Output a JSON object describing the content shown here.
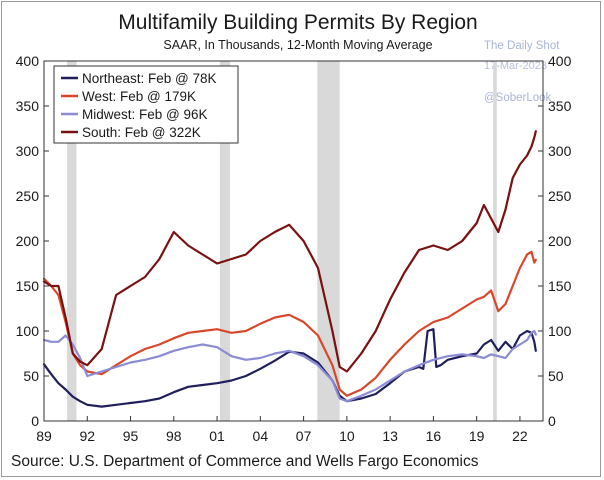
{
  "chart_data": {
    "type": "line",
    "title": "Multifamily Building Permits By Region",
    "subtitle": "SAAR, In Thousands, 12-Month Moving Average",
    "source": "Source: U.S. Department of Commerce and Wells Fargo Economics",
    "watermark": {
      "line1": "The Daily Shot",
      "line2": "17-Mar-2023",
      "line3": "@SoberLook"
    },
    "x_tick_labels": [
      "89",
      "92",
      "95",
      "98",
      "01",
      "04",
      "07",
      "10",
      "13",
      "16",
      "19",
      "22"
    ],
    "x_tick_years": [
      1989,
      1992,
      1995,
      1998,
      2001,
      2004,
      2007,
      2010,
      2013,
      2016,
      2019,
      2022
    ],
    "xlim": [
      1989,
      2023.6
    ],
    "ylim": [
      0,
      400
    ],
    "y_ticks": [
      0,
      50,
      100,
      150,
      200,
      250,
      300,
      350,
      400
    ],
    "y_tick_labels": [
      "0",
      "50",
      "100",
      "150",
      "200",
      "250",
      "300",
      "350",
      "400"
    ],
    "y_ticks_right": [
      0,
      50,
      100,
      150,
      200,
      250,
      300,
      350,
      400
    ],
    "y_tick_labels_right": [
      "0",
      "50",
      "100",
      "150",
      "200",
      "250",
      "300",
      "350",
      "400"
    ],
    "grid": false,
    "legend_position": "top-left",
    "recessions": [
      [
        1990.6,
        1991.25
      ],
      [
        2001.2,
        2001.9
      ],
      [
        2007.95,
        2009.5
      ],
      [
        2020.15,
        2020.4
      ]
    ],
    "recession_color": "#d9d9d9",
    "series": [
      {
        "name": "Northeast: Feb @ 78K",
        "color": "#1f1f5c",
        "x": [
          1989.0,
          1989.5,
          1990.0,
          1990.5,
          1991.0,
          1991.5,
          1992.0,
          1993.0,
          1994.0,
          1995.0,
          1996.0,
          1997.0,
          1998.0,
          1999.0,
          2000.0,
          2001.0,
          2002.0,
          2003.0,
          2004.0,
          2005.0,
          2006.0,
          2007.0,
          2008.0,
          2009.0,
          2009.5,
          2010.0,
          2011.0,
          2012.0,
          2013.0,
          2014.0,
          2015.0,
          2015.3,
          2015.6,
          2016.0,
          2016.2,
          2016.5,
          2017.0,
          2018.0,
          2019.0,
          2019.5,
          2020.0,
          2020.5,
          2021.0,
          2021.5,
          2022.0,
          2022.5,
          2022.8,
          2023.0,
          2023.1
        ],
        "y": [
          63,
          52,
          42,
          35,
          27,
          22,
          18,
          16,
          18,
          20,
          22,
          25,
          32,
          38,
          40,
          42,
          45,
          50,
          58,
          67,
          77,
          75,
          65,
          45,
          28,
          22,
          25,
          30,
          42,
          55,
          60,
          58,
          100,
          102,
          60,
          62,
          68,
          72,
          75,
          85,
          90,
          78,
          88,
          80,
          95,
          100,
          98,
          88,
          78
        ]
      },
      {
        "name": "West: Feb @ 179K",
        "color": "#d9472b",
        "x": [
          1989.0,
          1989.5,
          1990.0,
          1990.5,
          1991.0,
          1991.5,
          1992.0,
          1993.0,
          1994.0,
          1995.0,
          1996.0,
          1997.0,
          1998.0,
          1999.0,
          2000.0,
          2001.0,
          2002.0,
          2003.0,
          2004.0,
          2005.0,
          2006.0,
          2007.0,
          2008.0,
          2009.0,
          2009.5,
          2010.0,
          2011.0,
          2012.0,
          2013.0,
          2014.0,
          2015.0,
          2016.0,
          2017.0,
          2018.0,
          2019.0,
          2019.5,
          2020.0,
          2020.5,
          2021.0,
          2021.5,
          2022.0,
          2022.5,
          2022.8,
          2023.0,
          2023.1
        ],
        "y": [
          158,
          150,
          140,
          110,
          75,
          62,
          55,
          52,
          62,
          72,
          80,
          85,
          92,
          98,
          100,
          102,
          98,
          100,
          108,
          115,
          118,
          110,
          95,
          62,
          35,
          28,
          35,
          48,
          68,
          85,
          100,
          110,
          115,
          125,
          135,
          138,
          145,
          122,
          130,
          150,
          170,
          185,
          188,
          176,
          179
        ]
      },
      {
        "name": "Midwest: Feb @ 96K",
        "color": "#8b8bd6",
        "x": [
          1989.0,
          1989.5,
          1990.0,
          1990.5,
          1991.0,
          1991.5,
          1992.0,
          1993.0,
          1994.0,
          1995.0,
          1996.0,
          1997.0,
          1998.0,
          1999.0,
          2000.0,
          2001.0,
          2002.0,
          2003.0,
          2004.0,
          2005.0,
          2006.0,
          2007.0,
          2008.0,
          2009.0,
          2009.5,
          2010.0,
          2011.0,
          2012.0,
          2013.0,
          2014.0,
          2015.0,
          2016.0,
          2017.0,
          2018.0,
          2019.0,
          2019.5,
          2020.0,
          2020.5,
          2021.0,
          2021.5,
          2022.0,
          2022.5,
          2022.8,
          2023.0,
          2023.1
        ],
        "y": [
          90,
          88,
          88,
          95,
          85,
          70,
          50,
          55,
          60,
          65,
          68,
          72,
          78,
          82,
          85,
          82,
          72,
          68,
          70,
          75,
          78,
          72,
          62,
          45,
          25,
          22,
          28,
          35,
          45,
          55,
          62,
          68,
          72,
          74,
          72,
          70,
          74,
          72,
          70,
          80,
          85,
          90,
          98,
          100,
          96
        ]
      },
      {
        "name": "South: Feb @ 322K",
        "color": "#7a1010",
        "x": [
          1989.0,
          1989.5,
          1990.0,
          1990.5,
          1991.0,
          1991.5,
          1992.0,
          1993.0,
          1994.0,
          1995.0,
          1996.0,
          1997.0,
          1998.0,
          1999.0,
          2000.0,
          2001.0,
          2002.0,
          2003.0,
          2004.0,
          2005.0,
          2006.0,
          2007.0,
          2008.0,
          2009.0,
          2009.5,
          2010.0,
          2011.0,
          2012.0,
          2013.0,
          2014.0,
          2015.0,
          2016.0,
          2017.0,
          2018.0,
          2019.0,
          2019.5,
          2020.0,
          2020.5,
          2021.0,
          2021.5,
          2022.0,
          2022.5,
          2022.8,
          2023.0,
          2023.1
        ],
        "y": [
          155,
          150,
          150,
          115,
          75,
          66,
          62,
          80,
          140,
          150,
          160,
          180,
          210,
          195,
          185,
          175,
          180,
          185,
          200,
          210,
          218,
          200,
          170,
          100,
          60,
          55,
          75,
          100,
          135,
          165,
          190,
          195,
          190,
          200,
          220,
          240,
          225,
          210,
          235,
          270,
          285,
          295,
          305,
          315,
          322
        ]
      }
    ]
  }
}
